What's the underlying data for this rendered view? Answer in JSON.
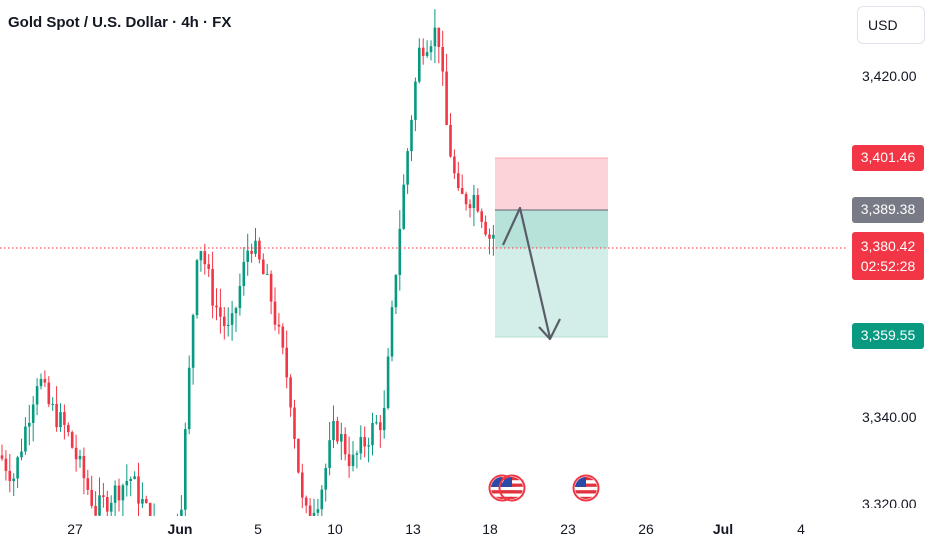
{
  "header": {
    "title": "Gold Spot / U.S. Dollar · 4h · FX"
  },
  "price_axis": {
    "currency": "USD",
    "ticks": [
      "3,420.00",
      "3,340.00",
      "3,320.00"
    ]
  },
  "price_tags": {
    "stop_loss": "3,401.46",
    "entry": "3,389.38",
    "current": "3,380.42",
    "countdown": "02:52:28",
    "take_profit": "3,359.55"
  },
  "time_axis": {
    "labels": [
      {
        "text": "27",
        "bold": false
      },
      {
        "text": "Jun",
        "bold": true
      },
      {
        "text": "5",
        "bold": false
      },
      {
        "text": "10",
        "bold": false
      },
      {
        "text": "13",
        "bold": false
      },
      {
        "text": "18",
        "bold": false
      },
      {
        "text": "23",
        "bold": false
      },
      {
        "text": "26",
        "bold": false
      },
      {
        "text": "Jul",
        "bold": true
      },
      {
        "text": "4",
        "bold": false
      }
    ]
  },
  "colors": {
    "up": "#089981",
    "down": "#f23645",
    "stop_zone": "#fbd3d8",
    "target_zone": "#d3ede8",
    "entry_tag": "#787b86",
    "arrow": "#595d68"
  },
  "icons": [
    "us-flag-event-icon",
    "us-flag-event-icon",
    "us-flag-event-icon"
  ]
}
